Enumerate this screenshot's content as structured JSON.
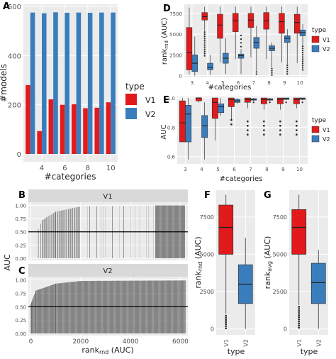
{
  "colors": {
    "V1": "#e31a1c",
    "V2": "#3a7dbd",
    "panel_bg": "#ebebeb",
    "grid": "#ffffff",
    "strip_bg": "#d9d9d9",
    "text": "#222222",
    "axis_text": "#4d4d4d",
    "bar": "#4d4d4d"
  },
  "legend": {
    "title": "type",
    "items": [
      "V1",
      "V2"
    ]
  },
  "panel_letters": [
    "A",
    "B",
    "C",
    "D",
    "E",
    "F",
    "G"
  ],
  "chart_data": [
    {
      "id": "A",
      "type": "bar",
      "xlabel": "#categories",
      "ylabel": "#models",
      "x": [
        3,
        4,
        5,
        6,
        7,
        8,
        9,
        10
      ],
      "xticks": [
        4,
        6,
        8,
        10
      ],
      "yticks": [
        0,
        200,
        400,
        600
      ],
      "ylim": [
        0,
        600
      ],
      "legend": "right",
      "series": [
        {
          "name": "V1",
          "values": [
            280,
            93,
            222,
            200,
            202,
            186,
            188,
            210
          ]
        },
        {
          "name": "V2",
          "values": [
            575,
            572,
            576,
            574,
            575,
            574,
            575,
            575
          ]
        }
      ]
    },
    {
      "id": "D",
      "type": "box",
      "xlabel": "#categories",
      "ylabel": "rank",
      "ylabel_sub": "rnd",
      "ylabel_suffix": " (AUC)",
      "categories": [
        "3",
        "4",
        "5",
        "6",
        "7",
        "8",
        "9",
        "10"
      ],
      "yticks": [
        0,
        2500,
        5000,
        7500
      ],
      "ytick_labels": [
        "0",
        "2500",
        "5000",
        "7500"
      ],
      "ylim": [
        -200,
        8600
      ],
      "legend": "right",
      "series": [
        {
          "name": "V1",
          "boxes": [
            [
              200,
              700,
              2800,
              5800,
              8200
            ],
            [
              5400,
              6700,
              7100,
              7600,
              8300
            ],
            [
              1600,
              4500,
              6100,
              7400,
              8300
            ],
            [
              2000,
              5300,
              6600,
              7500,
              8300
            ],
            [
              2200,
              5800,
              6700,
              7500,
              8300
            ],
            [
              2000,
              5600,
              6600,
              7600,
              8300
            ],
            [
              1600,
              5100,
              6500,
              7500,
              8300
            ],
            [
              1500,
              5100,
              6400,
              7400,
              8300
            ]
          ]
        },
        {
          "name": "V2",
          "boxes": [
            [
              0,
              500,
              1500,
              2500,
              4700
            ],
            [
              100,
              700,
              1000,
              1500,
              2500
            ],
            [
              200,
              1500,
              2100,
              2700,
              4500
            ],
            [
              200,
              2100,
              2400,
              2600,
              3200
            ],
            [
              600,
              3300,
              4000,
              4600,
              6000
            ],
            [
              1000,
              3000,
              3300,
              3600,
              4000
            ],
            [
              1400,
              4000,
              4500,
              4800,
              5600
            ],
            [
              3700,
              4800,
              5200,
              5500,
              6200
            ]
          ]
        }
      ]
    },
    {
      "id": "E",
      "type": "box",
      "xlabel": "#categories",
      "ylabel": "AUC",
      "categories": [
        "3",
        "4",
        "5",
        "6",
        "7",
        "8",
        "9",
        "10"
      ],
      "yticks": [
        0.6,
        0.8,
        1.0
      ],
      "ytick_labels": [
        "0.6",
        "0.8",
        "1.0"
      ],
      "ylim": [
        0.55,
        1.01
      ],
      "legend": "right",
      "series": [
        {
          "name": "V1",
          "boxes": [
            [
              0.7,
              0.7,
              0.83,
              0.98,
              1.0
            ],
            [
              0.97,
              0.98,
              1.0,
              1.0,
              1.0
            ],
            [
              0.71,
              0.86,
              0.97,
              1.0,
              1.0
            ],
            [
              0.85,
              0.94,
              0.99,
              1.0,
              1.0
            ],
            [
              0.93,
              0.97,
              0.99,
              1.0,
              1.0
            ],
            [
              0.92,
              0.96,
              0.99,
              1.0,
              1.0
            ],
            [
              0.92,
              0.96,
              0.99,
              1.0,
              1.0
            ],
            [
              0.93,
              0.96,
              0.99,
              1.0,
              1.0
            ]
          ]
        },
        {
          "name": "V2",
          "boxes": [
            [
              0.58,
              0.7,
              0.89,
              0.95,
              1.0
            ],
            [
              0.58,
              0.73,
              0.81,
              0.88,
              0.97
            ],
            [
              0.88,
              0.9,
              0.94,
              0.96,
              1.0
            ],
            [
              0.96,
              0.97,
              0.98,
              0.99,
              1.0
            ],
            [
              0.98,
              0.985,
              0.99,
              0.995,
              1.0
            ],
            [
              0.98,
              0.985,
              0.99,
              0.995,
              1.0
            ],
            [
              0.985,
              0.99,
              0.995,
              1.0,
              1.0
            ],
            [
              0.985,
              0.99,
              0.995,
              1.0,
              1.0
            ]
          ]
        }
      ]
    },
    {
      "id": "BC",
      "type": "bar",
      "xlabel": "rank",
      "xlabel_sub": "rnd",
      "xlabel_suffix": " (AUC)",
      "ylabel": "AUC",
      "xticks": [
        0,
        2000,
        4000,
        6000
      ],
      "xlim": [
        -100,
        6300
      ],
      "yticks": [
        0,
        0.25,
        0.5,
        0.75,
        1.0
      ],
      "ytick_labels": [
        "0.00",
        "0.25",
        "0.50",
        "0.75",
        "1.00"
      ],
      "ylim": [
        -0.04,
        1.06
      ],
      "hline": 0.5,
      "facets": [
        {
          "strip": "V1",
          "segments": [
            {
              "from": 300,
              "to": 450,
              "auc": [
                0.55,
                0.72
              ],
              "density": "sparse"
            },
            {
              "from": 450,
              "to": 1000,
              "auc": [
                0.72,
                0.88
              ],
              "density": "medium"
            },
            {
              "from": 1000,
              "to": 2000,
              "auc": [
                0.88,
                0.98
              ],
              "density": "medium"
            },
            {
              "from": 2000,
              "to": 5000,
              "auc": [
                0.98,
                1.0
              ],
              "density": "sparse"
            },
            {
              "from": 5000,
              "to": 6200,
              "auc": [
                1.0,
                1.0
              ],
              "density": "dense"
            }
          ]
        },
        {
          "strip": "V2",
          "segments": [
            {
              "from": 0,
              "to": 40,
              "auc": [
                0.55,
                0.6
              ],
              "density": "dense"
            },
            {
              "from": 40,
              "to": 200,
              "auc": [
                0.6,
                0.8
              ],
              "density": "dense"
            },
            {
              "from": 200,
              "to": 1000,
              "auc": [
                0.8,
                0.93
              ],
              "density": "dense"
            },
            {
              "from": 1000,
              "to": 2000,
              "auc": [
                0.93,
                0.98
              ],
              "density": "dense"
            },
            {
              "from": 2000,
              "to": 6200,
              "auc": [
                0.98,
                0.99
              ],
              "density": "dense"
            }
          ]
        }
      ]
    },
    {
      "id": "F",
      "type": "box",
      "xlabel": "type",
      "ylabel": "rank",
      "ylabel_sub": "rnd",
      "ylabel_suffix": " (AUC)",
      "categories": [
        "V1",
        "V2"
      ],
      "yticks": [
        0,
        2500,
        5000,
        7500
      ],
      "ytick_labels": [
        "0",
        "2500",
        "5000",
        "7500"
      ],
      "ylim": [
        -400,
        9300
      ],
      "boxes": [
        [
          1000,
          5000,
          6800,
          8300,
          9000
        ],
        [
          0,
          1700,
          3000,
          4300,
          6100
        ]
      ]
    },
    {
      "id": "G",
      "type": "box",
      "xlabel": "type",
      "ylabel": "rank",
      "ylabel_sub": "avg",
      "ylabel_suffix": " (AUC)",
      "categories": [
        "V1",
        "V2"
      ],
      "yticks": [
        0,
        2500,
        5000,
        7500
      ],
      "ytick_labels": [
        "0",
        "2500",
        "5000",
        "7500"
      ],
      "ylim": [
        -400,
        9300
      ],
      "boxes": [
        [
          1600,
          5000,
          6800,
          8000,
          9000
        ],
        [
          0,
          1700,
          3100,
          4400,
          5300
        ]
      ]
    }
  ]
}
